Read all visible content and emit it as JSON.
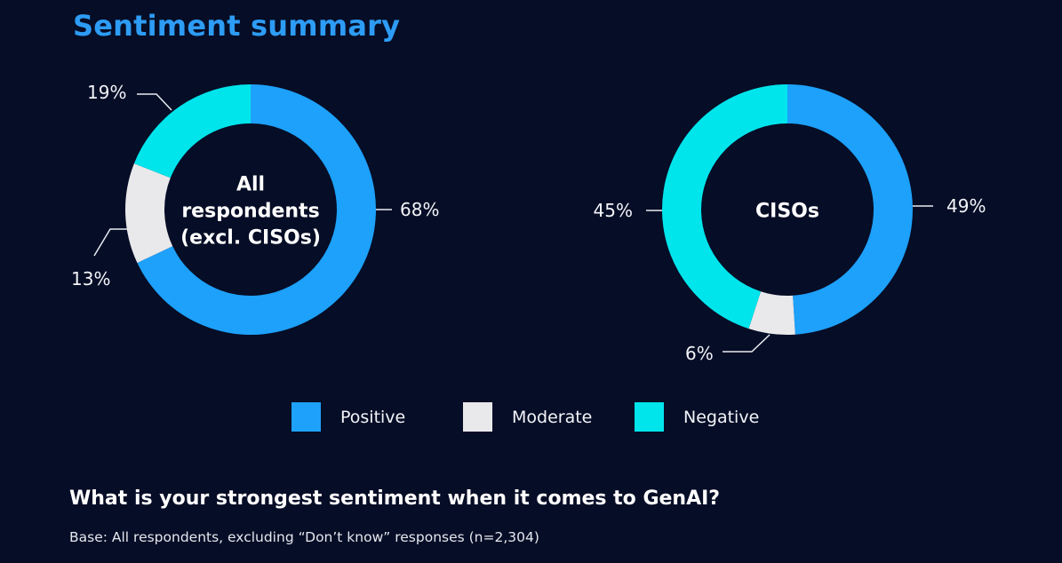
{
  "header": {
    "title": "Sentiment summary"
  },
  "colors": {
    "positive": "#1da1fb",
    "moderate": "#e9e9eb",
    "negative": "#00e5ec",
    "background": "#060d26",
    "title": "#2d9cf5"
  },
  "chart_data": [
    {
      "type": "pie",
      "variant": "donut",
      "center_label": [
        "All",
        "respondents",
        "(excl. CISOs)"
      ],
      "slices": [
        {
          "name": "Positive",
          "value": 68,
          "label": "68%"
        },
        {
          "name": "Moderate",
          "value": 13,
          "label": "13%"
        },
        {
          "name": "Negative",
          "value": 19,
          "label": "19%"
        }
      ]
    },
    {
      "type": "pie",
      "variant": "donut",
      "center_label": [
        "CISOs"
      ],
      "slices": [
        {
          "name": "Positive",
          "value": 49,
          "label": "49%"
        },
        {
          "name": "Moderate",
          "value": 6,
          "label": "6%"
        },
        {
          "name": "Negative",
          "value": 45,
          "label": "45%"
        }
      ]
    }
  ],
  "legend": [
    {
      "label": "Positive",
      "color_key": "positive"
    },
    {
      "label": "Moderate",
      "color_key": "moderate"
    },
    {
      "label": "Negative",
      "color_key": "negative"
    }
  ],
  "footer": {
    "question": "What is your strongest sentiment when it comes to GenAI?",
    "base": "Base: All respondents, excluding “Don’t know” responses (n=2,304)"
  }
}
